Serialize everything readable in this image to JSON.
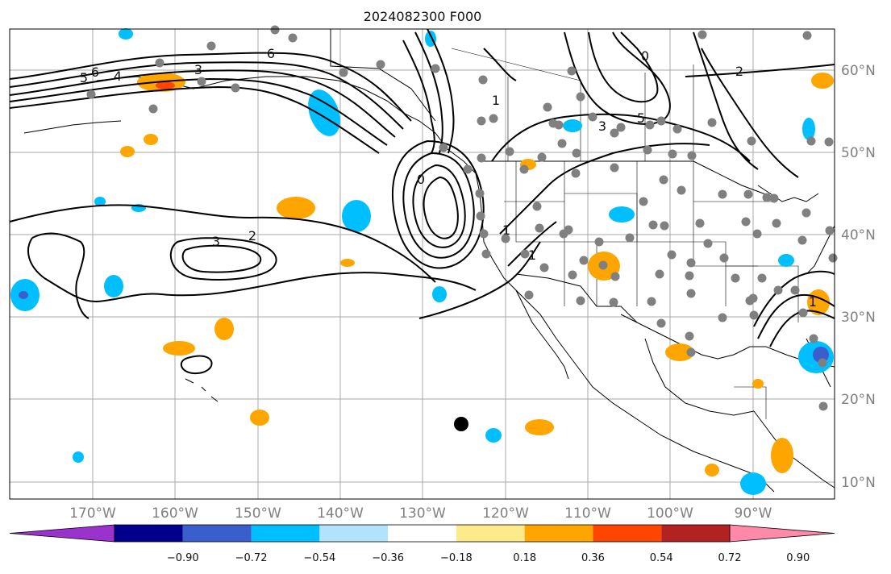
{
  "title": "2024082300 F000",
  "lon_labels": [
    "170°W",
    "160°W",
    "150°W",
    "140°W",
    "130°W",
    "120°W",
    "110°W",
    "100°W",
    "90°W"
  ],
  "lat_labels": [
    "60°N",
    "50°N",
    "40°N",
    "30°N",
    "20°N",
    "10°N"
  ],
  "colorbar": {
    "colors": [
      "#9a32cd",
      "#00008b",
      "#3a5fcd",
      "#00bfff",
      "#b2e3fa",
      "#ffffff",
      "#fdea8b",
      "#ffa500",
      "#ff4500",
      "#b22222",
      "#ff89a8"
    ],
    "labels": [
      "−0.90",
      "−0.72",
      "−0.54",
      "−0.36",
      "−0.18",
      "0.18",
      "0.36",
      "0.54",
      "0.72",
      "0.90"
    ]
  },
  "contour_labels": [
    {
      "text": "5"
    },
    {
      "text": "6"
    },
    {
      "text": "4"
    },
    {
      "text": "3"
    },
    {
      "text": "6"
    },
    {
      "text": "1"
    },
    {
      "text": "0"
    },
    {
      "text": "2"
    },
    {
      "text": "3"
    },
    {
      "text": "2"
    },
    {
      "text": "1"
    },
    {
      "text": "1"
    },
    {
      "text": "3"
    },
    {
      "text": "5"
    },
    {
      "text": "0"
    },
    {
      "text": "1"
    }
  ],
  "map": {
    "land_color": "#ffffff",
    "coast_color": "#000000",
    "grid_color": "#a9a9a9",
    "station_color": "#808080",
    "marker_color": "#000000"
  }
}
